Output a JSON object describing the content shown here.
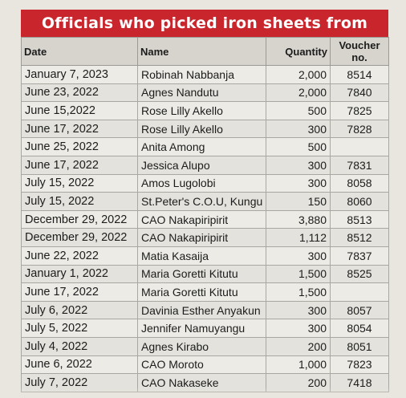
{
  "title": "Officials who picked iron sheets from OPM",
  "columns": {
    "date": "Date",
    "name": "Name",
    "quantity": "Quantity",
    "voucher_line1": "Voucher",
    "voucher_line2": "no."
  },
  "rows": [
    {
      "date": "January 7, 2023",
      "name": "Robinah Nabbanja",
      "quantity": "2,000",
      "voucher": "8514"
    },
    {
      "date": "June 23, 2022",
      "name": "Agnes Nandutu",
      "quantity": "2,000",
      "voucher": "7840"
    },
    {
      "date": "June 15,2022",
      "name": "Rose Lilly Akello",
      "quantity": "500",
      "voucher": "7825"
    },
    {
      "date": "June 17, 2022",
      "name": "Rose Lilly Akello",
      "quantity": "300",
      "voucher": "7828"
    },
    {
      "date": "June 25, 2022",
      "name": "Anita Among",
      "quantity": "500",
      "voucher": ""
    },
    {
      "date": "June 17, 2022",
      "name": "Jessica Alupo",
      "quantity": "300",
      "voucher": "7831"
    },
    {
      "date": "July 15, 2022",
      "name": "Amos Lugolobi",
      "quantity": "300",
      "voucher": "8058"
    },
    {
      "date": "July 15, 2022",
      "name": "St.Peter's C.O.U, Kungu",
      "quantity": "150",
      "voucher": "8060"
    },
    {
      "date": "December 29, 2022",
      "name": "CAO Nakapiripirit",
      "quantity": "3,880",
      "voucher": "8513"
    },
    {
      "date": "December 29, 2022",
      "name": "CAO Nakapiripirit",
      "quantity": "1,112",
      "voucher": "8512"
    },
    {
      "date": "June 22, 2022",
      "name": "Matia Kasaija",
      "quantity": "300",
      "voucher": "7837"
    },
    {
      "date": "January 1, 2022",
      "name": "Maria Goretti Kitutu",
      "quantity": "1,500",
      "voucher": "8525"
    },
    {
      "date": "June 17, 2022",
      "name": "Maria Goretti Kitutu",
      "quantity": "1,500",
      "voucher": ""
    },
    {
      "date": "July 6, 2022",
      "name": "Davinia Esther Anyakun",
      "quantity": "300",
      "voucher": "8057"
    },
    {
      "date": "July 5, 2022",
      "name": "Jennifer Namuyangu",
      "quantity": "300",
      "voucher": "8054"
    },
    {
      "date": "July 4, 2022",
      "name": "Agnes Kirabo",
      "quantity": "200",
      "voucher": "8051"
    },
    {
      "date": "June 6, 2022",
      "name": "CAO Moroto",
      "quantity": "1,000",
      "voucher": "7823"
    },
    {
      "date": "July 7, 2022",
      "name": "CAO Nakaseke",
      "quantity": "200",
      "voucher": "7418"
    }
  ]
}
